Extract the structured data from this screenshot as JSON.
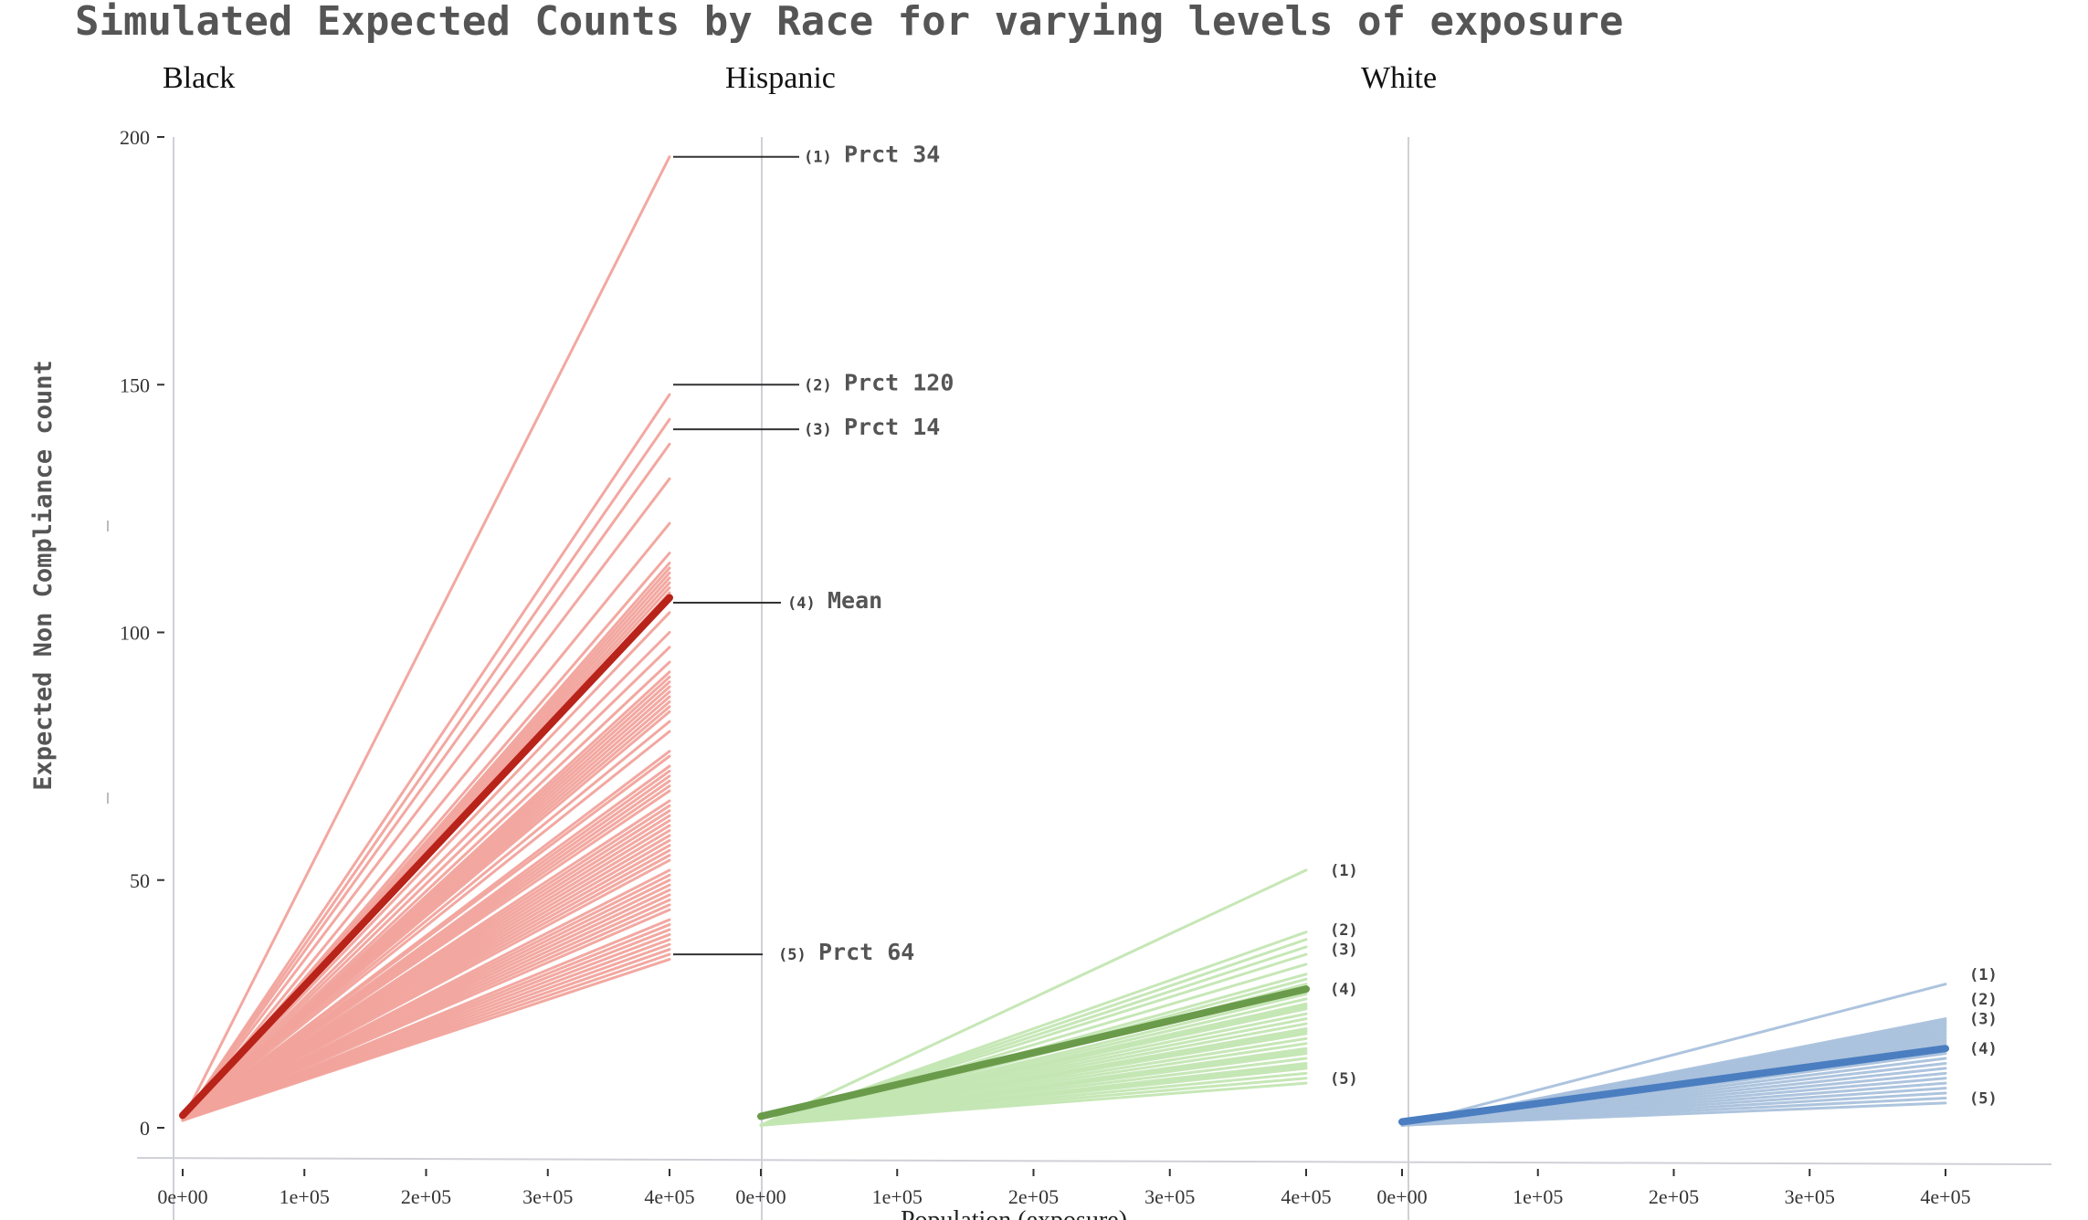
{
  "chart_data": {
    "type": "line",
    "title": "Simulated Expected Counts by Race for varying levels of exposure",
    "ylabel": "Expected Non Compliance count",
    "xlabel": "Population (exposure)",
    "ylim": [
      0,
      200
    ],
    "y_ticks": [
      "0",
      "50",
      "100",
      "150",
      "200"
    ],
    "x_ticks": [
      "0e+00",
      "1e+05",
      "2e+05",
      "3e+05",
      "4e+05"
    ],
    "xlim": [
      0,
      400000
    ],
    "grid": false,
    "facets": [
      {
        "name": "Black",
        "color": "#f2a49c",
        "mean_color": "#b8231a",
        "mean": {
          "x": [
            0,
            400000
          ],
          "y": [
            2.5,
            107
          ]
        },
        "sim_endpoints": [
          196,
          148,
          143,
          138,
          131,
          122,
          116,
          114,
          113,
          112,
          111,
          110,
          109,
          108,
          104,
          100,
          97,
          94,
          92,
          91,
          90,
          89,
          88,
          87,
          86,
          85,
          84,
          82,
          80,
          76,
          75,
          73,
          72,
          71,
          70,
          69,
          68,
          66,
          65,
          64,
          63,
          62,
          61,
          60,
          59,
          58,
          57,
          56,
          55,
          54,
          52,
          51,
          50,
          49,
          48,
          47,
          46,
          45,
          44,
          42,
          41,
          40,
          39,
          38,
          37,
          36,
          35,
          34
        ],
        "labels": [
          {
            "num": "(1)",
            "text": "Prct 34",
            "y": 196
          },
          {
            "num": "(2)",
            "text": "Prct 120",
            "y": 150
          },
          {
            "num": "(3)",
            "text": "Prct 14",
            "y": 141
          },
          {
            "num": "(4)",
            "text": "Mean",
            "y": 106
          },
          {
            "num": "(5)",
            "text": "Prct 64",
            "y": 35
          }
        ]
      },
      {
        "name": "Hispanic",
        "color": "#c3e6b3",
        "mean_color": "#6a9b4a",
        "mean": {
          "x": [
            0,
            400000
          ],
          "y": [
            2.3,
            28
          ]
        },
        "sim_endpoints": [
          52,
          39.5,
          38,
          36.5,
          35,
          33,
          31,
          30,
          29,
          28.5,
          27,
          26,
          25,
          24.5,
          24,
          23,
          22,
          21,
          20,
          19.5,
          19,
          18,
          17,
          16,
          15.5,
          15,
          14,
          13,
          12.5,
          12,
          11,
          10,
          9
        ],
        "labels": [
          {
            "num": "(1)",
            "y": 52
          },
          {
            "num": "(2)",
            "y": 40
          },
          {
            "num": "(3)",
            "y": 36
          },
          {
            "num": "(4)",
            "y": 28
          },
          {
            "num": "(5)",
            "y": 10
          }
        ]
      },
      {
        "name": "White",
        "color": "#a9c1dd",
        "mean_color": "#4b7ec0",
        "mean": {
          "x": [
            0,
            400000
          ],
          "y": [
            1.2,
            16
          ]
        },
        "sim_endpoints": [
          29,
          22,
          21.5,
          21,
          20.5,
          20,
          19.5,
          19,
          18.5,
          18,
          17.5,
          17,
          16.5,
          16,
          15.5,
          15,
          14,
          13,
          12,
          11,
          10,
          9,
          8,
          7,
          6,
          5
        ],
        "labels": [
          {
            "num": "(1)",
            "y": 31
          },
          {
            "num": "(2)",
            "y": 26
          },
          {
            "num": "(3)",
            "y": 22
          },
          {
            "num": "(4)",
            "y": 16
          },
          {
            "num": "(5)",
            "y": 6
          }
        ]
      }
    ]
  }
}
